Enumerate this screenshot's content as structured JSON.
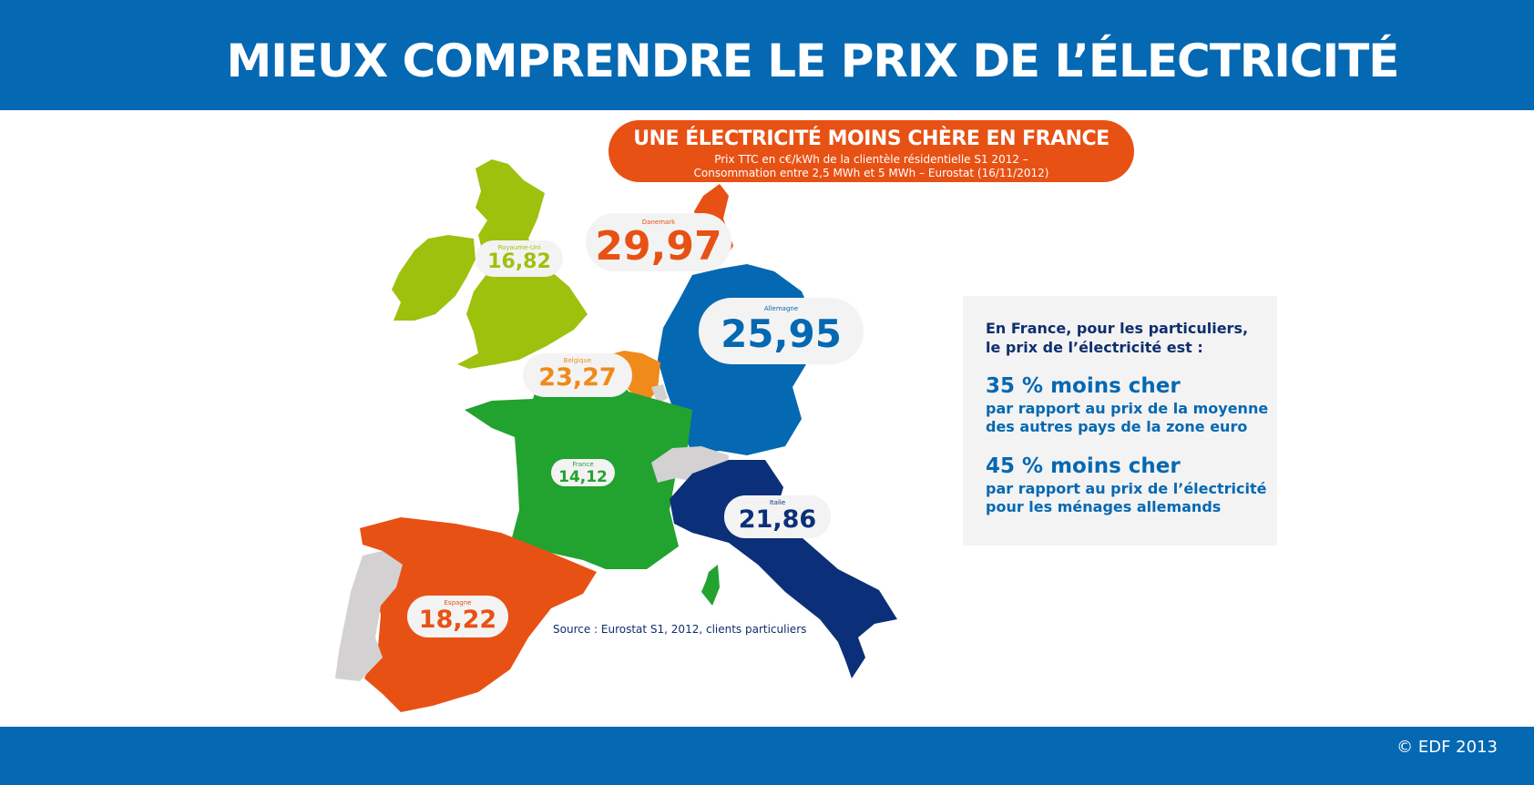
{
  "header": {
    "title": "MIEUX COMPRENDRE LE PRIX DE L’ÉLECTRICITÉ"
  },
  "banner": {
    "title": "UNE ÉLECTRICITÉ MOINS CHÈRE EN FRANCE",
    "subtitle_line1": "Prix TTC en c€/kWh de la clientèle résidentielle S1 2012 –",
    "subtitle_line2": "Consommation entre 2,5 MWh et 5 MWh – Eurostat (16/11/2012)"
  },
  "countries": [
    {
      "name": "Royaume-Uni",
      "price": "16,82",
      "color": "#9ec10e"
    },
    {
      "name": "Danemark",
      "price": "29,97",
      "color": "#e85114"
    },
    {
      "name": "Allemagne",
      "price": "25,95",
      "color": "#0568b2"
    },
    {
      "name": "Belgique",
      "price": "23,27",
      "color": "#ef8a1b"
    },
    {
      "name": "France",
      "price": "14,12",
      "color": "#22a22f"
    },
    {
      "name": "Italie",
      "price": "21,86",
      "color": "#0b3079"
    },
    {
      "name": "Espagne",
      "price": "18,22",
      "color": "#e85114"
    }
  ],
  "info": {
    "intro_line1": "En France, pour les particuliers,",
    "intro_line2": "le prix de l’électricité est :",
    "point1_big": "35 % moins cher",
    "point1_line1": "par rapport au prix de la moyenne",
    "point1_line2": "des autres pays de la zone euro",
    "point2_big": "45 % moins cher",
    "point2_line1": "par rapport au prix de l’électricité",
    "point2_line2": "pour les ménages allemands"
  },
  "source": "Source : Eurostat S1, 2012, clients particuliers",
  "footer": {
    "copyright": "© EDF 2013"
  },
  "neutral_color": "#d3d1d2"
}
